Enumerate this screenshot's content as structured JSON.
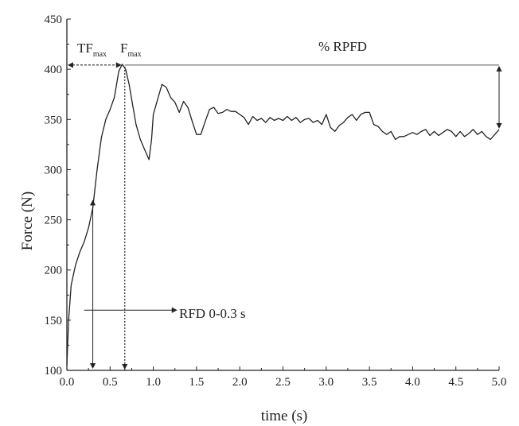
{
  "chart_data": {
    "type": "line",
    "title": "",
    "xlabel": "time (s)",
    "ylabel": "Force (N)",
    "xlim": [
      0.0,
      5.0
    ],
    "ylim": [
      100,
      450
    ],
    "xticks": [
      "0.0",
      "0.5",
      "1.0",
      "1.5",
      "2.0",
      "2.5",
      "3.0",
      "3.5",
      "4.0",
      "4.5",
      "5.0"
    ],
    "yticks": [
      "100",
      "150",
      "200",
      "250",
      "300",
      "350",
      "400",
      "450"
    ],
    "grid": false,
    "series": [
      {
        "x": [
          0.0,
          0.02,
          0.05,
          0.1,
          0.15,
          0.2,
          0.25,
          0.3,
          0.35,
          0.4,
          0.45,
          0.5,
          0.55,
          0.6,
          0.64,
          0.68,
          0.72,
          0.76,
          0.8,
          0.85,
          0.9,
          0.95,
          0.98,
          1.0,
          1.05,
          1.1,
          1.15,
          1.2,
          1.25,
          1.3,
          1.35,
          1.4,
          1.45,
          1.5,
          1.55,
          1.6,
          1.65,
          1.7,
          1.75,
          1.8,
          1.85,
          1.9,
          1.95,
          2.0,
          2.05,
          2.1,
          2.15,
          2.2,
          2.25,
          2.3,
          2.35,
          2.4,
          2.45,
          2.5,
          2.55,
          2.6,
          2.65,
          2.7,
          2.75,
          2.8,
          2.85,
          2.9,
          2.95,
          3.0,
          3.05,
          3.1,
          3.15,
          3.2,
          3.25,
          3.3,
          3.35,
          3.4,
          3.45,
          3.5,
          3.55,
          3.6,
          3.65,
          3.7,
          3.75,
          3.8,
          3.85,
          3.9,
          3.95,
          4.0,
          4.05,
          4.1,
          4.15,
          4.2,
          4.25,
          4.3,
          4.35,
          4.4,
          4.45,
          4.5,
          4.55,
          4.6,
          4.65,
          4.7,
          4.75,
          4.8,
          4.85,
          4.9,
          4.95,
          5.0
        ],
        "y": [
          105,
          150,
          185,
          205,
          218,
          228,
          242,
          262,
          300,
          332,
          350,
          360,
          372,
          398,
          405,
          400,
          385,
          365,
          345,
          330,
          320,
          310,
          330,
          355,
          370,
          385,
          382,
          372,
          367,
          357,
          368,
          362,
          348,
          335,
          335,
          348,
          360,
          362,
          356,
          357,
          360,
          358,
          358,
          355,
          352,
          345,
          353,
          349,
          351,
          347,
          352,
          349,
          351,
          349,
          353,
          349,
          352,
          347,
          350,
          351,
          347,
          349,
          345,
          355,
          342,
          338,
          344,
          347,
          352,
          355,
          349,
          355,
          357,
          357,
          345,
          343,
          338,
          335,
          338,
          330,
          333,
          333,
          335,
          337,
          335,
          338,
          340,
          334,
          338,
          334,
          337,
          340,
          338,
          333,
          338,
          333,
          336,
          340,
          335,
          338,
          333,
          330,
          335,
          340
        ]
      }
    ],
    "annotations": {
      "tf_max": "TF",
      "tf_max_sub": "max",
      "f_max": "F",
      "f_max_sub": "max",
      "rpfd": "% RPFD",
      "rfd": "RFD 0-0.3 s"
    }
  }
}
